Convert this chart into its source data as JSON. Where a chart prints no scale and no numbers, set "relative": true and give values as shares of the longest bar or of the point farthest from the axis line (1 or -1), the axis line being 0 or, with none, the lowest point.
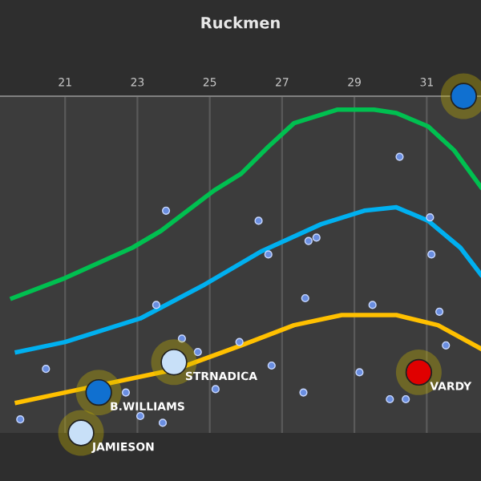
{
  "chart_data": {
    "type": "line",
    "title": "Ruckmen",
    "relative": true,
    "grid": "x",
    "xlim": [
      19.2,
      32.5
    ],
    "xticks": [
      21,
      23,
      25,
      27,
      29,
      31
    ],
    "series": [
      {
        "color": "#00c050",
        "x": [
          19.54,
          21.0,
          22.86,
          23.65,
          25.12,
          25.87,
          26.62,
          27.33,
          28.52,
          29.54,
          30.16,
          31.04,
          31.75,
          32.5
        ],
        "values": [
          0.4,
          0.46,
          0.55,
          0.6,
          0.72,
          0.77,
          0.85,
          0.92,
          0.96,
          0.96,
          0.95,
          0.91,
          0.84,
          0.73
        ]
      },
      {
        "color": "#00b0f0",
        "x": [
          19.67,
          21.0,
          23.08,
          24.85,
          26.44,
          28.08,
          29.27,
          30.16,
          31.04,
          31.93,
          32.5
        ],
        "values": [
          0.24,
          0.27,
          0.34,
          0.44,
          0.54,
          0.62,
          0.66,
          0.67,
          0.63,
          0.55,
          0.47
        ]
      },
      {
        "color": "#ffc000",
        "x": [
          19.67,
          21.44,
          24.1,
          25.87,
          27.33,
          28.65,
          30.16,
          31.31,
          32.5
        ],
        "values": [
          0.09,
          0.13,
          0.19,
          0.26,
          0.32,
          0.35,
          0.35,
          0.32,
          0.25
        ]
      },
      {
        "type": "scatter",
        "marker": "circle",
        "color": "#6a8ee0",
        "x": [
          20.47,
          19.76,
          23.52,
          24.23,
          24.67,
          25.82,
          26.71,
          25.16,
          22.68,
          23.08,
          23.7,
          27.64,
          27.59,
          29.5,
          31.35,
          31.53,
          29.14,
          29.98,
          30.42,
          31.13,
          26.62,
          23.79,
          26.35,
          30.25,
          31.09,
          27.73,
          27.95
        ],
        "values": [
          0.19,
          0.04,
          0.38,
          0.28,
          0.24,
          0.27,
          0.2,
          0.13,
          0.12,
          0.05,
          0.03,
          0.4,
          0.12,
          0.38,
          0.36,
          0.26,
          0.18,
          0.1,
          0.1,
          0.53,
          0.53,
          0.66,
          0.63,
          0.82,
          0.64,
          0.57,
          0.58
        ]
      },
      {
        "type": "scatter",
        "marker": "circle",
        "x": [
          32.02,
          24.01,
          21.93,
          21.44,
          30.78
        ],
        "values": [
          1.0,
          0.21,
          0.12,
          0.0,
          0.18
        ],
        "colors": [
          "#1070d0",
          "#c8e0f8",
          "#1070d0",
          "#c8e0f8",
          "#e00000"
        ]
      }
    ],
    "annotations": [
      {
        "text": "STRNADICA",
        "x": 24.01,
        "y": 0.21
      },
      {
        "text": "B.WILLIAMS",
        "x": 21.93,
        "y": 0.12
      },
      {
        "text": "JAMIESON",
        "x": 21.44,
        "y": 0.0
      },
      {
        "text": "VARDY",
        "x": 30.78,
        "y": 0.18
      }
    ]
  }
}
